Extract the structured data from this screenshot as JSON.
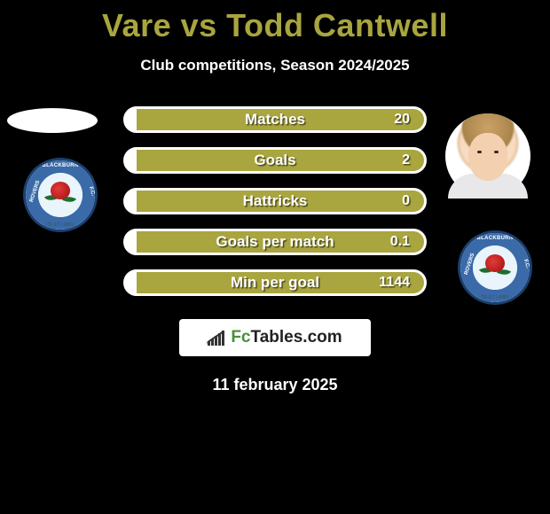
{
  "title": "Vare vs Todd Cantwell",
  "subtitle": "Club competitions, Season 2024/2025",
  "accent_color": "#a9a53f",
  "title_color": "#a9a53f",
  "stats": [
    {
      "label": "Matches",
      "right_value": "20"
    },
    {
      "label": "Goals",
      "right_value": "2"
    },
    {
      "label": "Hattricks",
      "right_value": "0"
    },
    {
      "label": "Goals per match",
      "right_value": "0.1"
    },
    {
      "label": "Min per goal",
      "right_value": "1144"
    }
  ],
  "brand": {
    "prefix": "Fc",
    "suffix": "Tables.com"
  },
  "date": "11 february 2025",
  "badge": {
    "top_text": "BLACKBURN",
    "left_text": "ROVERS",
    "right_text": "F.C.",
    "bottom_text": "TE ET LABO"
  }
}
